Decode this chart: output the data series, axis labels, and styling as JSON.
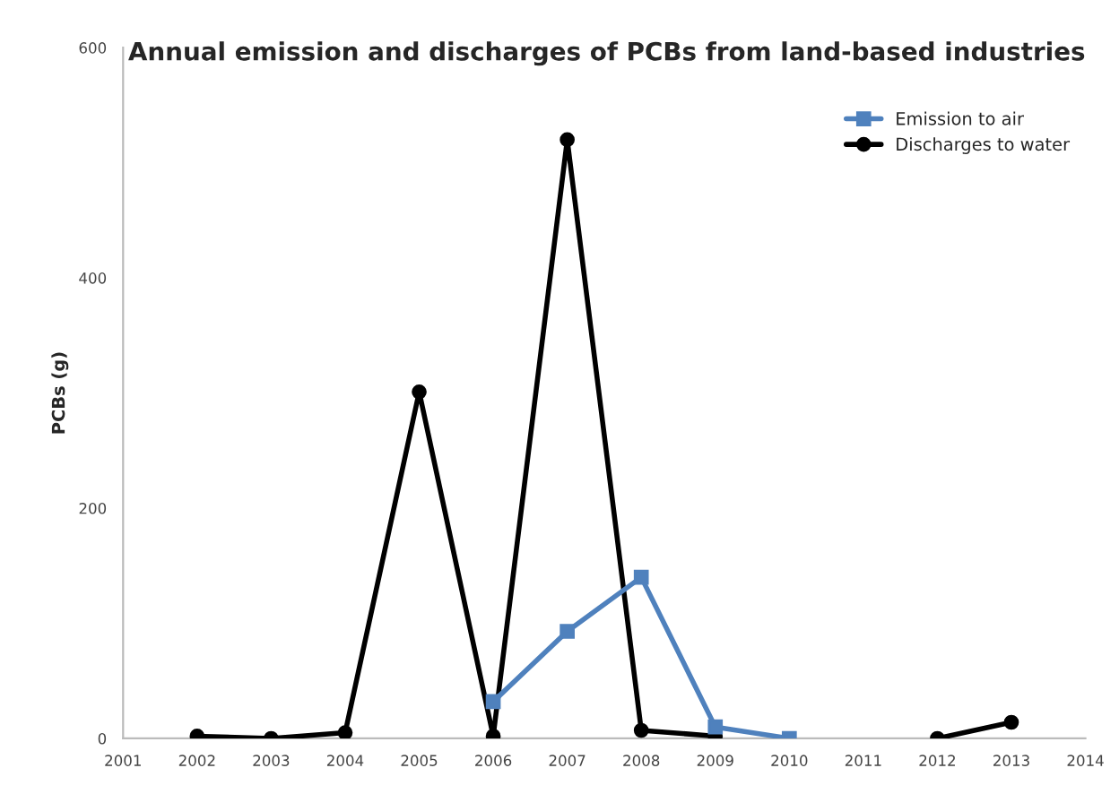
{
  "chart_data": {
    "type": "line",
    "title": "Annual emission and discharges of PCBs from land-based industries",
    "ylabel": "PCBs (g)",
    "x": [
      2002,
      2003,
      2004,
      2005,
      2006,
      2007,
      2008,
      2009,
      2010,
      2011,
      2012,
      2013
    ],
    "series": [
      {
        "name": "Emission to air",
        "color": "#4f81bd",
        "marker": "square",
        "values": [
          null,
          null,
          null,
          null,
          32,
          93,
          140,
          10,
          0,
          null,
          null,
          null
        ]
      },
      {
        "name": "Discharges to water",
        "color": "#000000",
        "marker": "circle",
        "values": [
          2,
          0,
          5,
          301,
          2,
          520,
          7,
          2,
          null,
          null,
          0,
          14
        ]
      }
    ],
    "xlim": [
      2001,
      2014
    ],
    "xticks": [
      2001,
      2002,
      2003,
      2004,
      2005,
      2006,
      2007,
      2008,
      2009,
      2010,
      2011,
      2012,
      2013,
      2014
    ],
    "ylim": [
      0,
      600
    ],
    "yticks": [
      0,
      200,
      400,
      600
    ],
    "grid": false,
    "legend": "top right"
  }
}
